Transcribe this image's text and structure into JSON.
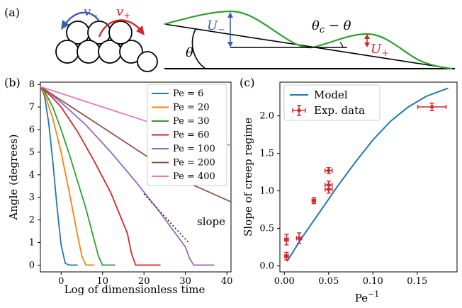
{
  "panel_a": {
    "label": "(a)",
    "v_minus": "v",
    "v_minus_sub": "−",
    "v_plus": "v",
    "v_plus_sub": "+",
    "u_minus": "U",
    "u_minus_sub": "−",
    "u_plus": "U",
    "u_plus_sub": "+",
    "theta": "θ",
    "theta_c_minus_theta": "θ",
    "theta_c_sub": "c",
    "theta_c_rest": " − θ",
    "colors": {
      "v_minus": "#3b5fb0",
      "v_plus": "#d62728",
      "potential": "#2ca02c",
      "u_minus": "#3b5fb0",
      "u_plus": "#d62728"
    }
  },
  "chart_data": [
    {
      "panel": "(b)",
      "type": "line",
      "xlabel": "Log of dimensionless time",
      "ylabel": "Angle (degrees)",
      "xlim": [
        -5,
        41
      ],
      "ylim": [
        -0.3,
        8.1
      ],
      "xticks": [
        0,
        10,
        20,
        30,
        40
      ],
      "yticks": [
        0,
        1,
        2,
        3,
        4,
        5,
        6,
        7,
        8
      ],
      "legend_position": "top-right",
      "series": [
        {
          "name": "Pe = 6",
          "color": "#1f77b4",
          "x": [
            -5,
            -4,
            -3,
            -2,
            -1,
            0,
            1,
            2,
            4
          ],
          "y": [
            7.9,
            7.5,
            6.3,
            4.6,
            2.6,
            0.9,
            0.08,
            0,
            0
          ]
        },
        {
          "name": "Pe = 20",
          "color": "#ff7f0e",
          "x": [
            -5,
            -4,
            -2,
            0,
            2,
            4,
            5,
            6,
            8
          ],
          "y": [
            7.9,
            7.6,
            6.5,
            5.0,
            3.2,
            1.3,
            0.4,
            0,
            0
          ]
        },
        {
          "name": "Pe = 30",
          "color": "#2ca02c",
          "x": [
            -5,
            -4,
            -2,
            0,
            2,
            4,
            6,
            8,
            9,
            10,
            13
          ],
          "y": [
            7.9,
            7.7,
            7.0,
            6.0,
            4.9,
            3.7,
            2.5,
            1.1,
            0.4,
            0,
            0
          ]
        },
        {
          "name": "Pe = 60",
          "color": "#d62728",
          "x": [
            -5,
            -4,
            -2,
            0,
            4,
            8,
            12,
            16,
            17,
            18,
            24
          ],
          "y": [
            7.9,
            7.75,
            7.4,
            7.0,
            5.9,
            4.6,
            3.2,
            1.4,
            0.5,
            0,
            0
          ]
        },
        {
          "name": "Pe = 100",
          "color": "#9467bd",
          "x": [
            -5,
            -4,
            -2,
            0,
            6,
            12,
            18,
            24,
            30,
            31,
            32,
            37
          ],
          "y": [
            7.9,
            7.8,
            7.5,
            7.2,
            6.2,
            5.0,
            3.7,
            2.3,
            0.8,
            0.3,
            0,
            0
          ]
        },
        {
          "name": "Pe = 200",
          "color": "#8c564b",
          "x": [
            -5,
            0,
            10,
            20,
            30,
            41
          ],
          "y": [
            7.9,
            7.3,
            6.1,
            4.9,
            3.7,
            2.8
          ]
        },
        {
          "name": "Pe = 400",
          "color": "#e377c2",
          "x": [
            -5,
            0,
            10,
            20,
            30,
            41
          ],
          "y": [
            7.9,
            7.6,
            7.0,
            6.4,
            5.8,
            5.3
          ]
        }
      ],
      "annotation": {
        "text": "slope",
        "line_x": [
          20,
          31
        ],
        "line_y": [
          3.15,
          0.95
        ]
      }
    },
    {
      "panel": "(c)",
      "type": "scatter",
      "xlabel": "Pe",
      "xlabel_sup": "−1",
      "ylabel": "Slope of creep regime",
      "xlim": [
        -0.005,
        0.195
      ],
      "ylim": [
        -0.08,
        2.45
      ],
      "xticks": [
        0.0,
        0.05,
        0.1,
        0.15
      ],
      "xtick_labels": [
        "0.00",
        "0.05",
        "0.10",
        "0.15"
      ],
      "yticks": [
        0.0,
        0.5,
        1.0,
        1.5,
        2.0
      ],
      "ytick_labels": [
        "0.0",
        "0.5",
        "1.0",
        "1.5",
        "2.0"
      ],
      "legend_position": "top-left",
      "model": {
        "name": "Model",
        "color": "#1f77b4",
        "x": [
          0.003,
          0.02,
          0.04,
          0.06,
          0.08,
          0.1,
          0.12,
          0.14,
          0.16,
          0.185
        ],
        "y": [
          0.06,
          0.38,
          0.72,
          1.06,
          1.38,
          1.68,
          1.93,
          2.12,
          2.26,
          2.37
        ]
      },
      "experiment": {
        "name": "Exp. data",
        "color": "#d62728",
        "points": [
          {
            "x": 0.0025,
            "y": 0.13,
            "xerr": 0.002,
            "yerr": 0.05
          },
          {
            "x": 0.0025,
            "y": 0.35,
            "xerr": 0.002,
            "yerr": 0.07
          },
          {
            "x": 0.0167,
            "y": 0.37,
            "xerr": 0.003,
            "yerr": 0.07
          },
          {
            "x": 0.0333,
            "y": 0.87,
            "xerr": 0.002,
            "yerr": 0.04
          },
          {
            "x": 0.05,
            "y": 1.02,
            "xerr": 0.004,
            "yerr": 0.05
          },
          {
            "x": 0.05,
            "y": 1.08,
            "xerr": 0.004,
            "yerr": 0.05
          },
          {
            "x": 0.05,
            "y": 1.27,
            "xerr": 0.004,
            "yerr": 0.04
          },
          {
            "x": 0.1667,
            "y": 2.12,
            "xerr": 0.016,
            "yerr": 0.05
          }
        ]
      }
    }
  ]
}
